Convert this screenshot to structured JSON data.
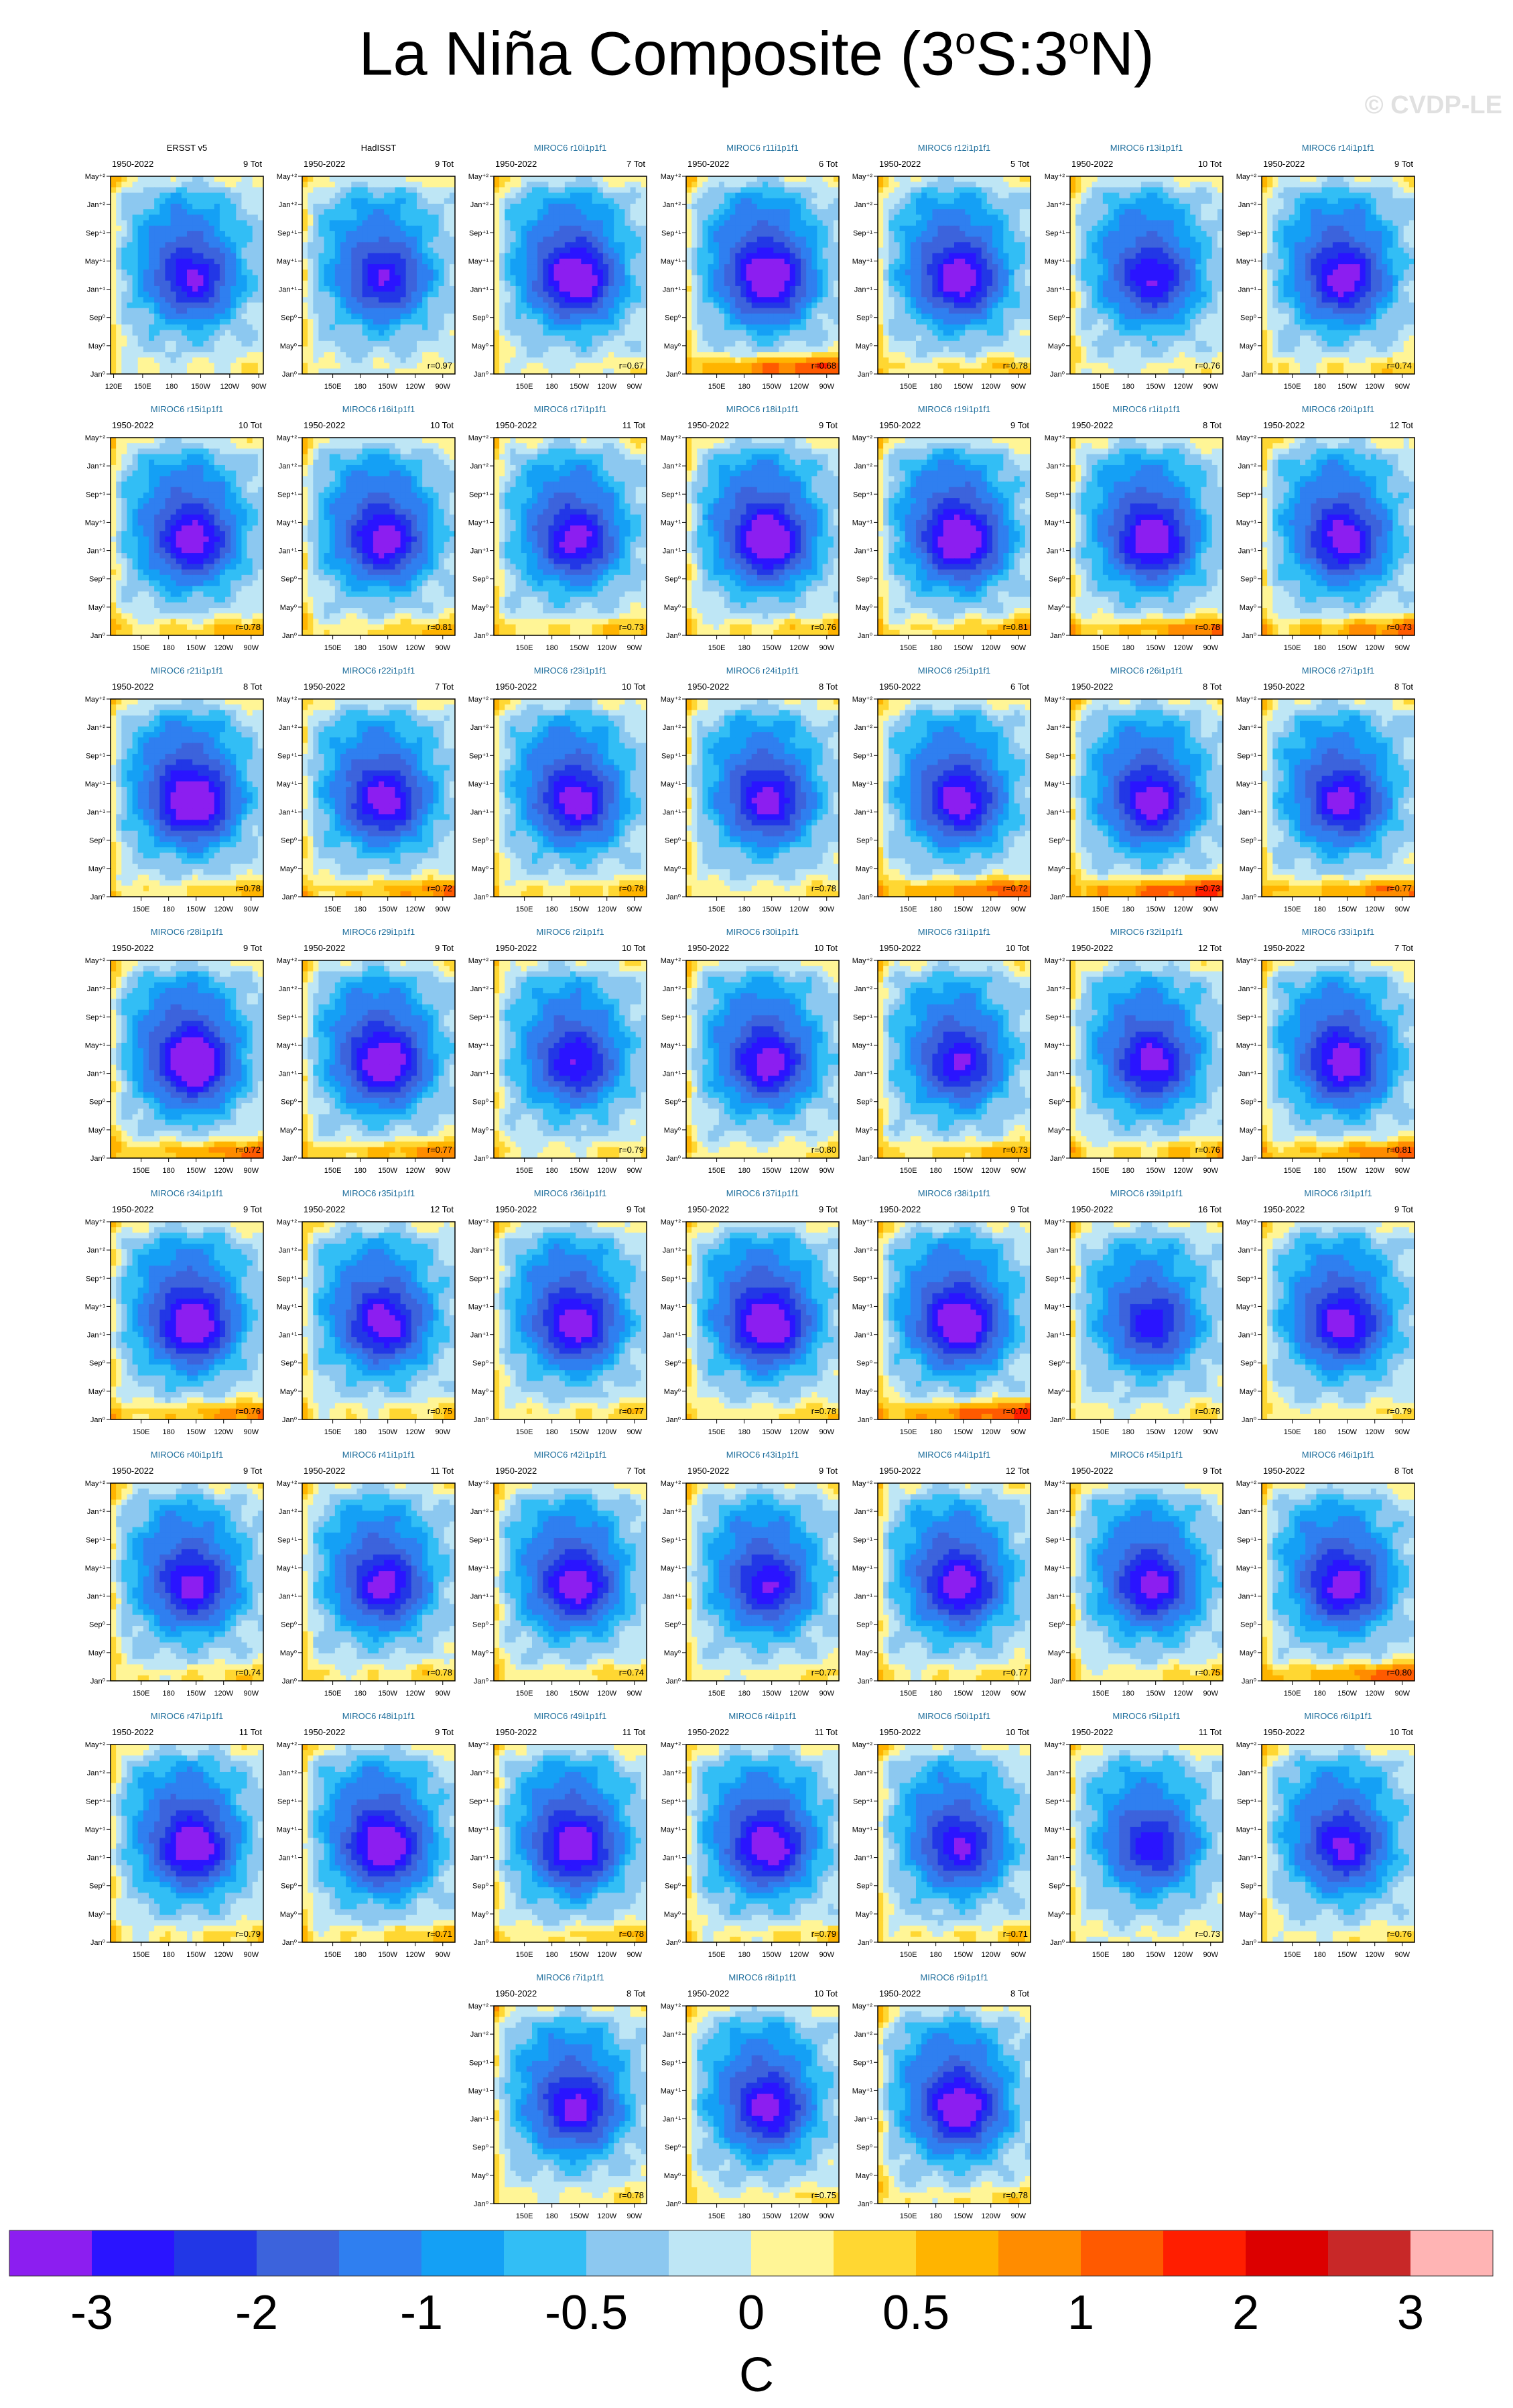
{
  "title": {
    "main": "La Niña Composite (3",
    "sup1": "o",
    "mid": "S:3",
    "sup2": "o",
    "end": "N)"
  },
  "watermark": "© CVDP-LE",
  "chart_data": {
    "type": "heatmap",
    "title": "La Niña Composite (3°S:3°N)",
    "x_ticks": [
      "150E",
      "180",
      "150W",
      "120W",
      "90W"
    ],
    "x_ticks_obs": [
      "120E",
      "150E",
      "180",
      "150W",
      "120W",
      "90W"
    ],
    "y_ticks": [
      "May⁺²",
      "Jan⁺²",
      "Sep⁺¹",
      "May⁺¹",
      "Jan⁺¹",
      "Sep⁰",
      "May⁰",
      "Jan⁰"
    ],
    "colorbar": {
      "unit": "C",
      "labels": [
        "-3",
        "-2",
        "-1",
        "-0.5",
        "0",
        "0.5",
        "1",
        "2",
        "3"
      ],
      "colors": [
        "#8c1ef0",
        "#2a14ff",
        "#2237e6",
        "#3c63dc",
        "#2f7ff0",
        "#14a0f5",
        "#32bef5",
        "#8cc8f0",
        "#bee6f5",
        "#fff596",
        "#ffd732",
        "#ffb400",
        "#ff8c00",
        "#ff5a00",
        "#ff1e00",
        "#dc0000",
        "#c82828",
        "#ffb4b4"
      ]
    },
    "panels": [
      {
        "name": "ERSST v5",
        "period": "1950-2022",
        "count": "9 Tot",
        "r": "",
        "min": -2.0,
        "warm": 0.2
      },
      {
        "name": "HadISST",
        "period": "1950-2022",
        "count": "9 Tot",
        "r": "r=0.97",
        "min": -1.9,
        "warm": 0.15
      },
      {
        "name": "MIROC6 r10i1p1f1",
        "period": "1950-2022",
        "count": "7 Tot",
        "r": "r=0.67",
        "min": -2.6,
        "warm": 0.2
      },
      {
        "name": "MIROC6 r11i1p1f1",
        "period": "1950-2022",
        "count": "6 Tot",
        "r": "r=0.68",
        "min": -2.7,
        "warm": 1.2
      },
      {
        "name": "MIROC6 r12i1p1f1",
        "period": "1950-2022",
        "count": "5 Tot",
        "r": "r=0.78",
        "min": -2.4,
        "warm": 0.5
      },
      {
        "name": "MIROC6 r13i1p1f1",
        "period": "1950-2022",
        "count": "10 Tot",
        "r": "r=0.76",
        "min": -2.0,
        "warm": 0.2
      },
      {
        "name": "MIROC6 r14i1p1f1",
        "period": "1950-2022",
        "count": "9 Tot",
        "r": "r=0.74",
        "min": -2.3,
        "warm": 0.4
      },
      {
        "name": "MIROC6 r15i1p1f1",
        "period": "1950-2022",
        "count": "10 Tot",
        "r": "r=0.78",
        "min": -2.3,
        "warm": 0.6
      },
      {
        "name": "MIROC6 r16i1p1f1",
        "period": "1950-2022",
        "count": "10 Tot",
        "r": "r=0.81",
        "min": -2.3,
        "warm": 0.5
      },
      {
        "name": "MIROC6 r17i1p1f1",
        "period": "1950-2022",
        "count": "11 Tot",
        "r": "r=0.73",
        "min": -2.2,
        "warm": 0.5
      },
      {
        "name": "MIROC6 r18i1p1f1",
        "period": "1950-2022",
        "count": "9 Tot",
        "r": "r=0.76",
        "min": -2.7,
        "warm": 0.5
      },
      {
        "name": "MIROC6 r19i1p1f1",
        "period": "1950-2022",
        "count": "9 Tot",
        "r": "r=0.81",
        "min": -2.7,
        "warm": 0.6
      },
      {
        "name": "MIROC6 r1i1p1f1",
        "period": "1950-2022",
        "count": "8 Tot",
        "r": "r=0.78",
        "min": -2.5,
        "warm": 0.9
      },
      {
        "name": "MIROC6 r20i1p1f1",
        "period": "1950-2022",
        "count": "12 Tot",
        "r": "r=0.73",
        "min": -2.3,
        "warm": 0.9
      },
      {
        "name": "MIROC6 r21i1p1f1",
        "period": "1950-2022",
        "count": "8 Tot",
        "r": "r=0.78",
        "min": -2.8,
        "warm": 0.5
      },
      {
        "name": "MIROC6 r22i1p1f1",
        "period": "1950-2022",
        "count": "7 Tot",
        "r": "r=0.72",
        "min": -2.3,
        "warm": 0.8
      },
      {
        "name": "MIROC6 r23i1p1f1",
        "period": "1950-2022",
        "count": "10 Tot",
        "r": "r=0.78",
        "min": -2.3,
        "warm": 0.5
      },
      {
        "name": "MIROC6 r24i1p1f1",
        "period": "1950-2022",
        "count": "8 Tot",
        "r": "r=0.78",
        "min": -2.2,
        "warm": 0.3
      },
      {
        "name": "MIROC6 r25i1p1f1",
        "period": "1950-2022",
        "count": "6 Tot",
        "r": "r=0.72",
        "min": -2.3,
        "warm": 1.1
      },
      {
        "name": "MIROC6 r26i1p1f1",
        "period": "1950-2022",
        "count": "8 Tot",
        "r": "r=0.73",
        "min": -2.3,
        "warm": 1.3
      },
      {
        "name": "MIROC6 r27i1p1f1",
        "period": "1950-2022",
        "count": "8 Tot",
        "r": "r=0.77",
        "min": -2.2,
        "warm": 0.9
      },
      {
        "name": "MIROC6 r28i1p1f1",
        "period": "1950-2022",
        "count": "9 Tot",
        "r": "r=0.72",
        "min": -2.8,
        "warm": 0.9
      },
      {
        "name": "MIROC6 r29i1p1f1",
        "period": "1950-2022",
        "count": "9 Tot",
        "r": "r=0.77",
        "min": -2.6,
        "warm": 0.8
      },
      {
        "name": "MIROC6 r2i1p1f1",
        "period": "1950-2022",
        "count": "10 Tot",
        "r": "r=0.79",
        "min": -2.0,
        "warm": 0.3
      },
      {
        "name": "MIROC6 r30i1p1f1",
        "period": "1950-2022",
        "count": "10 Tot",
        "r": "r=0.80",
        "min": -2.3,
        "warm": 0.3
      },
      {
        "name": "MIROC6 r31i1p1f1",
        "period": "1950-2022",
        "count": "10 Tot",
        "r": "r=0.73",
        "min": -2.0,
        "warm": 0.6
      },
      {
        "name": "MIROC6 r32i1p1f1",
        "period": "1950-2022",
        "count": "12 Tot",
        "r": "r=0.76",
        "min": -2.2,
        "warm": 0.6
      },
      {
        "name": "MIROC6 r33i1p1f1",
        "period": "1950-2022",
        "count": "7 Tot",
        "r": "r=0.81",
        "min": -2.4,
        "warm": 0.9
      },
      {
        "name": "MIROC6 r34i1p1f1",
        "period": "1950-2022",
        "count": "9 Tot",
        "r": "r=0.76",
        "min": -2.6,
        "warm": 0.8
      },
      {
        "name": "MIROC6 r35i1p1f1",
        "period": "1950-2022",
        "count": "12 Tot",
        "r": "r=0.75",
        "min": -2.3,
        "warm": 0.4
      },
      {
        "name": "MIROC6 r36i1p1f1",
        "period": "1950-2022",
        "count": "9 Tot",
        "r": "r=0.77",
        "min": -2.4,
        "warm": 0.4
      },
      {
        "name": "MIROC6 r37i1p1f1",
        "period": "1950-2022",
        "count": "9 Tot",
        "r": "r=0.78",
        "min": -2.7,
        "warm": 0.4
      },
      {
        "name": "MIROC6 r38i1p1f1",
        "period": "1950-2022",
        "count": "9 Tot",
        "r": "r=0.70",
        "min": -2.7,
        "warm": 1.2
      },
      {
        "name": "MIROC6 r39i1p1f1",
        "period": "1950-2022",
        "count": "16 Tot",
        "r": "r=0.78",
        "min": -1.8,
        "warm": 0.3
      },
      {
        "name": "MIROC6 r3i1p1f1",
        "period": "1950-2022",
        "count": "9 Tot",
        "r": "r=0.79",
        "min": -2.3,
        "warm": 0.3
      },
      {
        "name": "MIROC6 r40i1p1f1",
        "period": "1950-2022",
        "count": "9 Tot",
        "r": "r=0.74",
        "min": -2.2,
        "warm": 0.4
      },
      {
        "name": "MIROC6 r41i1p1f1",
        "period": "1950-2022",
        "count": "11 Tot",
        "r": "r=0.78",
        "min": -2.2,
        "warm": 0.4
      },
      {
        "name": "MIROC6 r42i1p1f1",
        "period": "1950-2022",
        "count": "7 Tot",
        "r": "r=0.74",
        "min": -2.3,
        "warm": 0.4
      },
      {
        "name": "MIROC6 r43i1p1f1",
        "period": "1950-2022",
        "count": "9 Tot",
        "r": "r=0.77",
        "min": -2.0,
        "warm": 0.3
      },
      {
        "name": "MIROC6 r44i1p1f1",
        "period": "1950-2022",
        "count": "12 Tot",
        "r": "r=0.77",
        "min": -2.3,
        "warm": 0.4
      },
      {
        "name": "MIROC6 r45i1p1f1",
        "period": "1950-2022",
        "count": "9 Tot",
        "r": "r=0.75",
        "min": -2.2,
        "warm": 0.4
      },
      {
        "name": "MIROC6 r46i1p1f1",
        "period": "1950-2022",
        "count": "8 Tot",
        "r": "r=0.80",
        "min": -2.3,
        "warm": 1.0
      },
      {
        "name": "MIROC6 r47i1p1f1",
        "period": "1950-2022",
        "count": "11 Tot",
        "r": "r=0.79",
        "min": -2.5,
        "warm": 0.4
      },
      {
        "name": "MIROC6 r48i1p1f1",
        "period": "1950-2022",
        "count": "9 Tot",
        "r": "r=0.71",
        "min": -2.6,
        "warm": 0.5
      },
      {
        "name": "MIROC6 r49i1p1f1",
        "period": "1950-2022",
        "count": "11 Tot",
        "r": "r=0.78",
        "min": -2.5,
        "warm": 0.5
      },
      {
        "name": "MIROC6 r4i1p1f1",
        "period": "1950-2022",
        "count": "11 Tot",
        "r": "r=0.79",
        "min": -2.5,
        "warm": 0.4
      },
      {
        "name": "MIROC6 r50i1p1f1",
        "period": "1950-2022",
        "count": "10 Tot",
        "r": "r=0.71",
        "min": -2.0,
        "warm": 0.4
      },
      {
        "name": "MIROC6 r5i1p1f1",
        "period": "1950-2022",
        "count": "11 Tot",
        "r": "r=0.73",
        "min": -1.8,
        "warm": 0.2
      },
      {
        "name": "MIROC6 r6i1p1f1",
        "period": "1950-2022",
        "count": "10 Tot",
        "r": "r=0.76",
        "min": -2.1,
        "warm": 0.3
      },
      {
        "name": "MIROC6 r7i1p1f1",
        "period": "1950-2022",
        "count": "8 Tot",
        "r": "r=0.78",
        "min": -2.2,
        "warm": 0.3
      },
      {
        "name": "MIROC6 r8i1p1f1",
        "period": "1950-2022",
        "count": "10 Tot",
        "r": "r=0.75",
        "min": -2.2,
        "warm": 0.3
      },
      {
        "name": "MIROC6 r9i1p1f1",
        "period": "1950-2022",
        "count": "8 Tot",
        "r": "r=0.78",
        "min": -2.5,
        "warm": 0.4
      }
    ]
  }
}
